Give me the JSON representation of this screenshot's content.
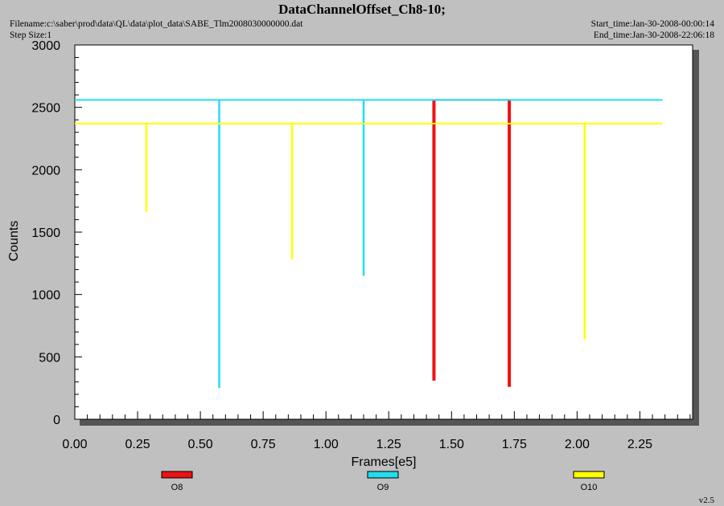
{
  "header": {
    "title": "DataChannelOffset_Ch8-10;",
    "filename": "Filename:c:\\saber\\prod\\data\\QL\\data\\plot_data\\SABE_Tlm2008030000000.dat",
    "step_size": "Step Size:1",
    "start_time": "Start_time:Jan-30-2008-00:00:14",
    "end_time": "End_time:Jan-30-2008-22:06:18"
  },
  "version": "v2.5",
  "chart_data": {
    "type": "line",
    "title": "DataChannelOffset_Ch8-10;",
    "xlabel": "Frames[e5]",
    "ylabel": "Counts",
    "xlim": [
      0,
      2.46
    ],
    "ylim": [
      0,
      3000
    ],
    "xticks": [
      "0.00",
      "0.25",
      "0.50",
      "0.75",
      "1.00",
      "1.25",
      "1.50",
      "1.75",
      "2.00",
      "2.25"
    ],
    "yticks": [
      "0",
      "500",
      "1000",
      "1500",
      "2000",
      "2500",
      "3000"
    ],
    "grid": false,
    "legend_position": "bottom",
    "series": [
      {
        "name": "O8",
        "color": "#ee1111",
        "baseline": 2560,
        "x_range": [
          1.43,
          1.73
        ],
        "drops": [
          {
            "x": 1.43,
            "y": 310
          },
          {
            "x": 1.73,
            "y": 260
          }
        ]
      },
      {
        "name": "O9",
        "color": "#22ddee",
        "baseline": 2560,
        "x_range": [
          0,
          2.34
        ],
        "drops": [
          {
            "x": 0.575,
            "y": 250
          },
          {
            "x": 1.15,
            "y": 1150
          }
        ]
      },
      {
        "name": "O10",
        "color": "#ffff00",
        "baseline": 2370,
        "x_range": [
          0,
          2.34
        ],
        "drops": [
          {
            "x": 0.285,
            "y": 1660
          },
          {
            "x": 0.865,
            "y": 1280
          },
          {
            "x": 2.03,
            "y": 640
          }
        ]
      }
    ]
  }
}
